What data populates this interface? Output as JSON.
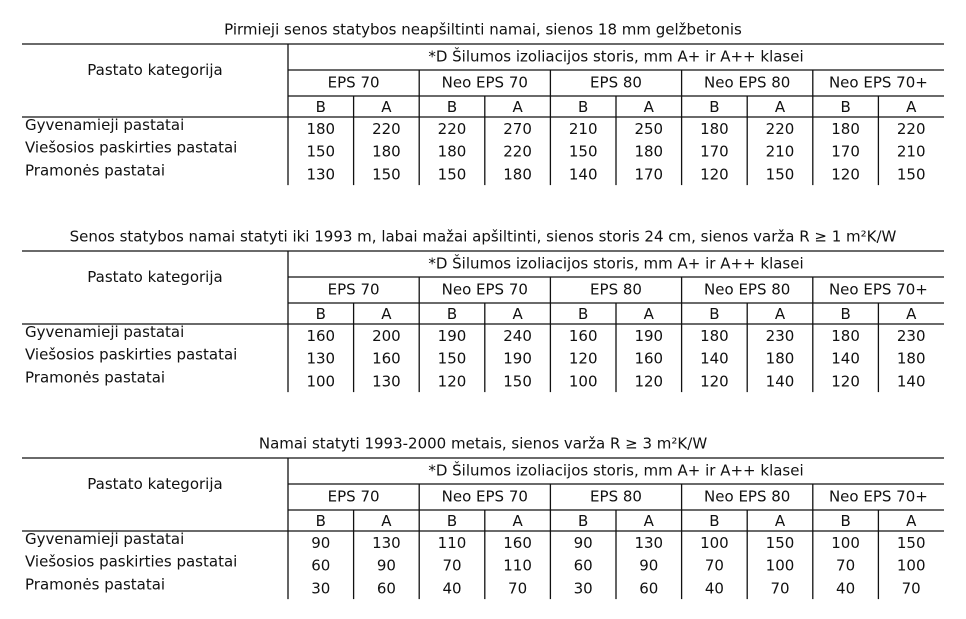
{
  "tables": [
    {
      "title": "Pirmieji senos statybos neapšiltinti namai, sienos 18 mm gelžbetonis",
      "category_header": "Pastato kategorija",
      "group_header": "*D Šilumos izoliacijos storis, mm A+ ir A++ klasei",
      "products": [
        "EPS 70",
        "Neo EPS 70",
        "EPS 80",
        "Neo EPS 80",
        "Neo EPS 70+"
      ],
      "grades": [
        "B",
        "A",
        "B",
        "A",
        "B",
        "A",
        "B",
        "A",
        "B",
        "A"
      ],
      "rows": [
        {
          "label": "Gyvenamieji pastatai",
          "values": [
            180,
            220,
            220,
            270,
            210,
            250,
            180,
            220,
            180,
            220
          ]
        },
        {
          "label": "Viešosios paskirties pastatai",
          "values": [
            150,
            180,
            180,
            220,
            150,
            180,
            170,
            210,
            170,
            210
          ]
        },
        {
          "label": "Pramonės pastatai",
          "values": [
            130,
            150,
            150,
            180,
            140,
            170,
            120,
            150,
            120,
            150
          ]
        }
      ]
    },
    {
      "title": "Senos statybos namai statyti iki 1993 m, labai mažai apšiltinti, sienos storis 24 cm, sienos varža R ≥ 1 m²K/W",
      "category_header": "Pastato kategorija",
      "group_header": "*D Šilumos izoliacijos storis, mm A+ ir A++ klasei",
      "products": [
        "EPS 70",
        "Neo EPS 70",
        "EPS 80",
        "Neo EPS 80",
        "Neo EPS 70+"
      ],
      "grades": [
        "B",
        "A",
        "B",
        "A",
        "B",
        "A",
        "B",
        "A",
        "B",
        "A"
      ],
      "rows": [
        {
          "label": "Gyvenamieji pastatai",
          "values": [
            160,
            200,
            190,
            240,
            160,
            190,
            180,
            230,
            180,
            230
          ]
        },
        {
          "label": "Viešosios paskirties pastatai",
          "values": [
            130,
            160,
            150,
            190,
            120,
            160,
            140,
            180,
            140,
            180
          ]
        },
        {
          "label": "Pramonės pastatai",
          "values": [
            100,
            130,
            120,
            150,
            100,
            120,
            120,
            140,
            120,
            140
          ]
        }
      ]
    },
    {
      "title": "Namai statyti 1993-2000 metais, sienos varža R ≥ 3 m²K/W",
      "category_header": "Pastato kategorija",
      "group_header": "*D Šilumos izoliacijos storis, mm A+ ir A++ klasei",
      "products": [
        "EPS 70",
        "Neo EPS 70",
        "EPS 80",
        "Neo EPS 80",
        "Neo EPS 70+"
      ],
      "grades": [
        "B",
        "A",
        "B",
        "A",
        "B",
        "A",
        "B",
        "A",
        "B",
        "A"
      ],
      "rows": [
        {
          "label": "Gyvenamieji pastatai",
          "values": [
            90,
            130,
            110,
            160,
            90,
            130,
            100,
            150,
            100,
            150
          ]
        },
        {
          "label": "Viešosios paskirties pastatai",
          "values": [
            60,
            90,
            70,
            110,
            60,
            90,
            70,
            100,
            70,
            100
          ]
        },
        {
          "label": "Pramonės pastatai",
          "values": [
            30,
            60,
            40,
            70,
            30,
            60,
            40,
            70,
            40,
            70
          ]
        }
      ]
    }
  ]
}
